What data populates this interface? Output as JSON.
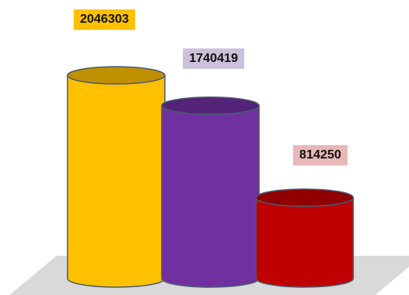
{
  "chart_data": {
    "type": "cylinder",
    "values": [
      2046303,
      1740419,
      814250
    ],
    "colors": [
      "#ffc000",
      "#7030a0",
      "#c00000"
    ],
    "label_backgrounds": [
      "#ffc000",
      "#ccc0da",
      "#e6b8b7"
    ]
  }
}
